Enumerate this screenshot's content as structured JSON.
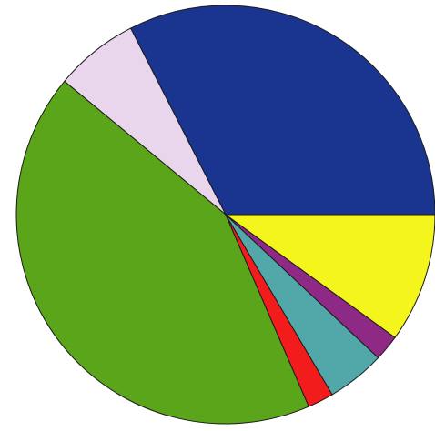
{
  "chart_data": {
    "type": "pie",
    "start_angle_deg": 0,
    "direction": "counterclockwise",
    "labels": [],
    "slices": [
      {
        "value": 32.5,
        "color": "#1a3590"
      },
      {
        "value": 6.5,
        "color": "#ead6ec"
      },
      {
        "value": 42.5,
        "color": "#5aa51a"
      },
      {
        "value": 2.0,
        "color": "#f21c1c"
      },
      {
        "value": 4.5,
        "color": "#52a8a8"
      },
      {
        "value": 2.0,
        "color": "#8e2a86"
      },
      {
        "value": 10.0,
        "color": "#f5f51e"
      }
    ],
    "legend": "none",
    "grid": false
  }
}
